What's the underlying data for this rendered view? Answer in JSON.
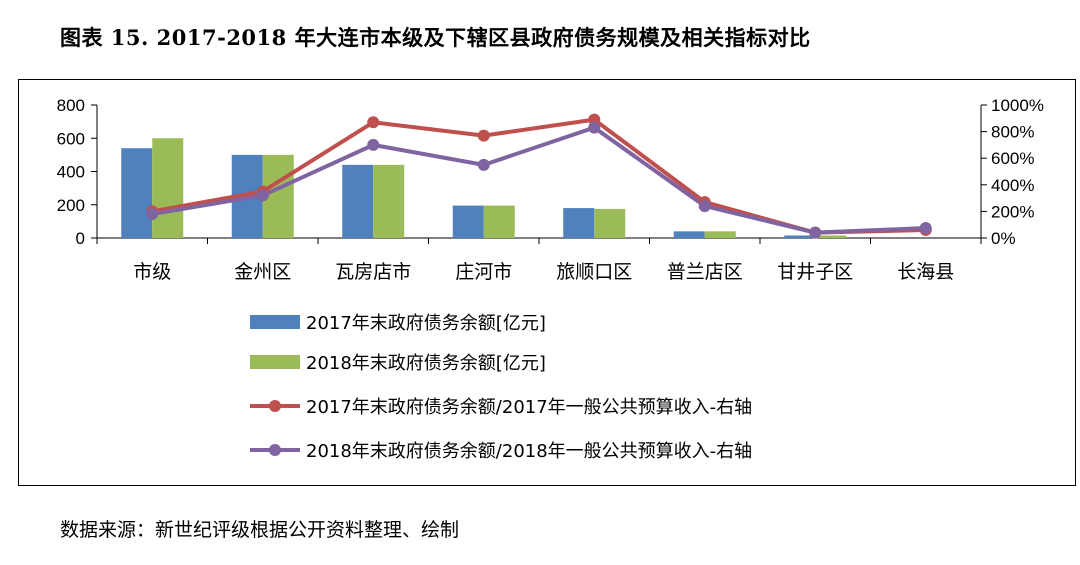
{
  "title": "图表 15. 2017-2018 年大连市本级及下辖区县政府债务规模及相关指标对比",
  "source": "数据来源：新世纪评级根据公开资料整理、绘制",
  "chart_data": {
    "type": "bar+line",
    "categories": [
      "市级",
      "金州区",
      "瓦房店市",
      "庄河市",
      "旅顺口区",
      "普兰店区",
      "甘井子区",
      "长海县"
    ],
    "y_left": {
      "ticks": [
        0,
        200,
        400,
        600,
        800
      ],
      "ylim": [
        0,
        800
      ]
    },
    "y_right": {
      "ticks": [
        "0%",
        "200%",
        "400%",
        "600%",
        "800%",
        "1000%"
      ],
      "ylim": [
        0,
        1000
      ]
    },
    "bar_series": [
      {
        "name": "2017年末政府债务余额[亿元]",
        "color": "#4f81bd",
        "values": [
          540,
          500,
          440,
          195,
          180,
          40,
          15,
          0
        ]
      },
      {
        "name": "2018年末政府债务余额[亿元]",
        "color": "#9bbb59",
        "values": [
          600,
          500,
          440,
          195,
          175,
          40,
          15,
          0
        ]
      }
    ],
    "line_series": [
      {
        "name": "2017年末政府债务余额/2017年一般公共预算收入-右轴",
        "color": "#c0504d",
        "values": [
          200,
          350,
          870,
          770,
          890,
          270,
          40,
          60
        ]
      },
      {
        "name": "2018年末政府债务余额/2018年一般公共预算收入-右轴",
        "color": "#8064a2",
        "values": [
          180,
          320,
          700,
          550,
          830,
          240,
          40,
          75
        ]
      }
    ],
    "grid": false,
    "legend": "bottom"
  }
}
